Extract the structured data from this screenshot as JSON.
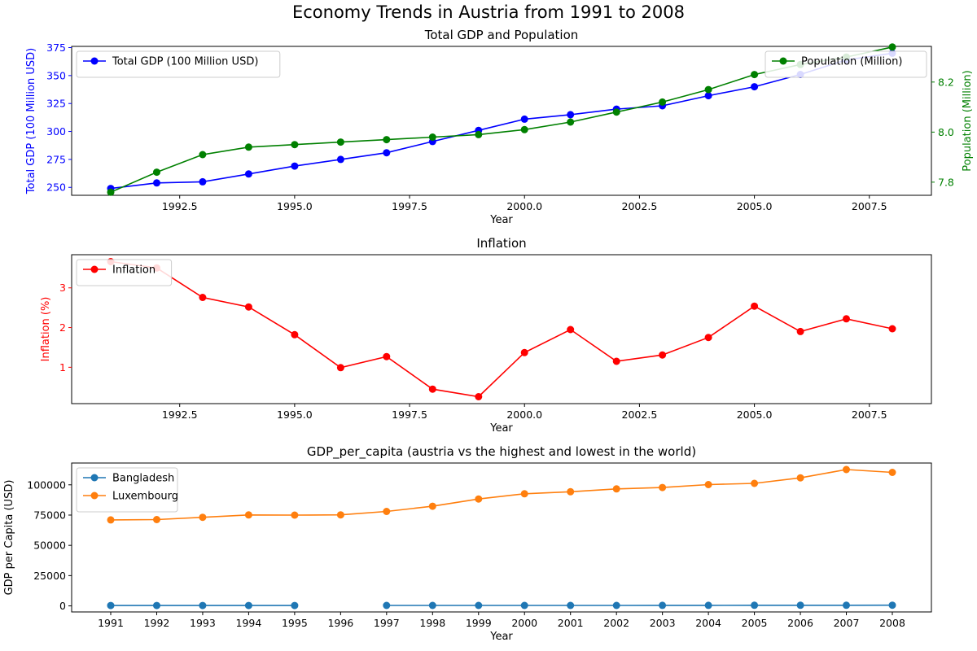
{
  "figure": {
    "title": "Economy Trends in Austria from 1991 to 2008"
  },
  "chart_data": [
    {
      "type": "line",
      "title": "Total GDP and Population",
      "xlabel": "Year",
      "ylabel": "Total GDP (100 Million USD)",
      "ylabel_right": "Population (Million)",
      "xlim": [
        1990.15,
        2008.85
      ],
      "ylim": [
        242.9,
        376.1
      ],
      "ylim_right": [
        7.7475,
        8.3425
      ],
      "x_ticks": [
        1992.5,
        1995.0,
        1997.5,
        2000.0,
        2002.5,
        2005.0,
        2007.5
      ],
      "x_tick_labels": [
        "1992.5",
        "1995.0",
        "1997.5",
        "2000.0",
        "2002.5",
        "2005.0",
        "2007.5"
      ],
      "y_ticks": [
        250,
        275,
        300,
        325,
        350,
        375
      ],
      "y_tick_labels": [
        "250",
        "275",
        "300",
        "325",
        "350",
        "375"
      ],
      "y_ticks_right": [
        7.8,
        8.0,
        8.2
      ],
      "y_tick_labels_right": [
        "7.8",
        "8.0",
        "8.2"
      ],
      "grid": false,
      "x": [
        1991,
        1992,
        1993,
        1994,
        1995,
        1996,
        1997,
        1998,
        1999,
        2000,
        2001,
        2002,
        2003,
        2004,
        2005,
        2006,
        2007,
        2008
      ],
      "series": [
        {
          "name": "Total GDP (100 Million USD)",
          "axis": "left",
          "color": "#0000ff",
          "legend": "top-left",
          "values": [
            249,
            254,
            255,
            262,
            269,
            275,
            281,
            291,
            301,
            311,
            315,
            320,
            323,
            332,
            340,
            351,
            364,
            370
          ]
        },
        {
          "name": "Population (Million)",
          "axis": "right",
          "color": "#008000",
          "legend": "top-right",
          "values": [
            7.76,
            7.84,
            7.91,
            7.94,
            7.95,
            7.96,
            7.97,
            7.98,
            7.99,
            8.01,
            8.04,
            8.08,
            8.12,
            8.17,
            8.23,
            8.27,
            8.3,
            8.34
          ]
        }
      ]
    },
    {
      "type": "line",
      "title": "Inflation",
      "xlabel": "Year",
      "ylabel": "Inflation (%)",
      "xlim": [
        1990.15,
        2008.85
      ],
      "ylim": [
        0.085,
        3.835
      ],
      "x_ticks": [
        1992.5,
        1995.0,
        1997.5,
        2000.0,
        2002.5,
        2005.0,
        2007.5
      ],
      "x_tick_labels": [
        "1992.5",
        "1995.0",
        "1997.5",
        "2000.0",
        "2002.5",
        "2005.0",
        "2007.5"
      ],
      "y_ticks": [
        1,
        2,
        3
      ],
      "y_tick_labels": [
        "1",
        "2",
        "3"
      ],
      "grid": false,
      "x": [
        1991,
        1992,
        1993,
        1994,
        1995,
        1996,
        1997,
        1998,
        1999,
        2000,
        2001,
        2002,
        2003,
        2004,
        2005,
        2006,
        2007,
        2008
      ],
      "series": [
        {
          "name": "Inflation",
          "axis": "left",
          "color": "#ff0000",
          "legend": "top-left",
          "values": [
            3.66,
            3.5,
            2.76,
            2.52,
            1.82,
            0.99,
            1.27,
            0.45,
            0.26,
            1.37,
            1.95,
            1.15,
            1.31,
            1.75,
            2.54,
            1.9,
            2.22,
            1.97
          ]
        }
      ]
    },
    {
      "type": "line",
      "title": "GDP_per_capita (austria vs the highest and lowest in the world)",
      "xlabel": "Year",
      "ylabel": "GDP per Capita (USD)",
      "xlim": [
        1990.15,
        2008.85
      ],
      "ylim": [
        -5000,
        118000
      ],
      "x_ticks": [
        1991,
        1992,
        1993,
        1994,
        1995,
        1996,
        1997,
        1998,
        1999,
        2000,
        2001,
        2002,
        2003,
        2004,
        2005,
        2006,
        2007,
        2008
      ],
      "x_tick_labels": [
        "1991",
        "1992",
        "1993",
        "1994",
        "1995",
        "1996",
        "1997",
        "1998",
        "1999",
        "2000",
        "2001",
        "2002",
        "2003",
        "2004",
        "2005",
        "2006",
        "2007",
        "2008"
      ],
      "y_ticks": [
        0,
        25000,
        50000,
        75000,
        100000
      ],
      "y_tick_labels": [
        "0",
        "25000",
        "50000",
        "75000",
        "100000"
      ],
      "grid": false,
      "x": [
        1991,
        1992,
        1993,
        1994,
        1995,
        1996,
        1997,
        1998,
        1999,
        2000,
        2001,
        2002,
        2003,
        2004,
        2005,
        2006,
        2007,
        2008
      ],
      "series": [
        {
          "name": "Bangladesh",
          "axis": "left",
          "color": "#1f77b4",
          "legend": "top-left",
          "values": [
            300,
            300,
            300,
            300,
            320,
            null,
            360,
            370,
            380,
            400,
            400,
            410,
            430,
            450,
            480,
            490,
            530,
            580
          ]
        },
        {
          "name": "Luxembourg",
          "axis": "left",
          "color": "#ff7f0e",
          "legend": "top-left",
          "values": [
            71000,
            71300,
            73200,
            75100,
            75000,
            75200,
            78000,
            82300,
            88300,
            92600,
            94300,
            96600,
            97800,
            100200,
            101200,
            105800,
            112600,
            110300
          ]
        }
      ]
    }
  ]
}
